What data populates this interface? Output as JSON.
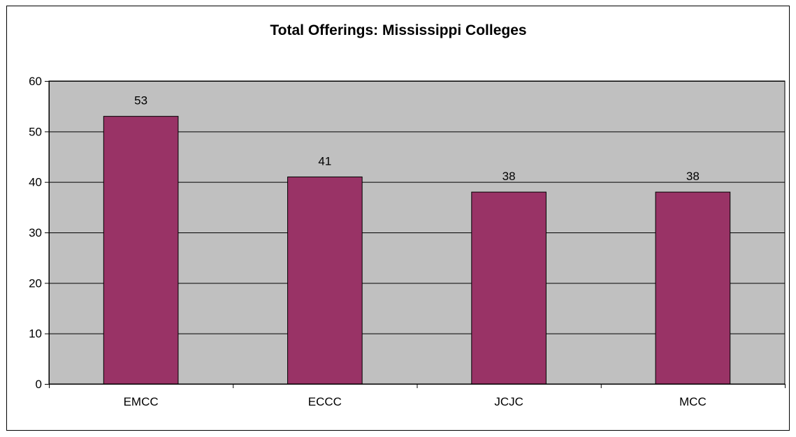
{
  "chart_data": {
    "type": "bar",
    "title": "Total Offerings: Mississippi Colleges",
    "xlabel": "",
    "ylabel": "",
    "categories": [
      "EMCC",
      "ECCC",
      "JCJC",
      "MCC"
    ],
    "values": [
      53,
      41,
      38,
      38
    ],
    "ylim": [
      0,
      60
    ],
    "yticks": [
      0,
      10,
      20,
      30,
      40,
      50,
      60
    ],
    "ytick_labels": [
      "0",
      "10",
      "20",
      "30",
      "40",
      "50",
      "60"
    ],
    "data_labels": [
      "53",
      "41",
      "38",
      "38"
    ],
    "grid": true,
    "legend": "none",
    "colors": {
      "bar": "#993366",
      "plot_background": "#c0c0c0",
      "gridline": "#000000",
      "axis": "#000000"
    }
  }
}
